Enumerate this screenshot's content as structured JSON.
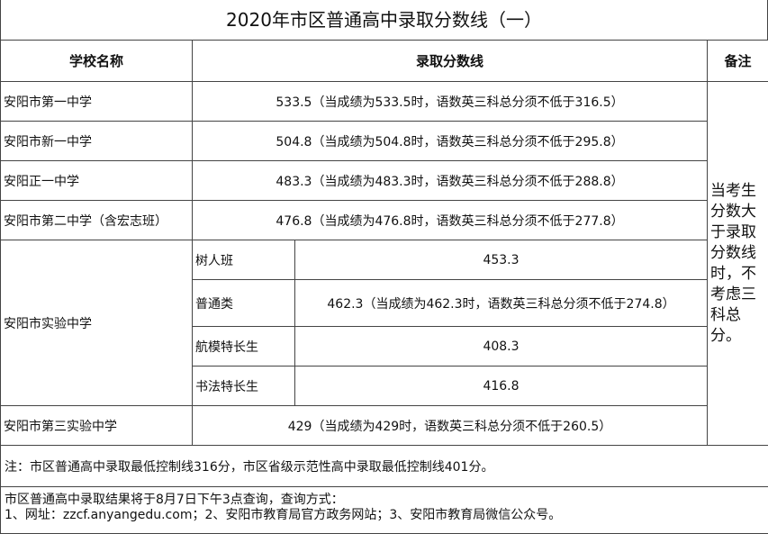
{
  "title": "2020年市区普通高中录取分数线（一）",
  "headers": {
    "school": "学校名称",
    "score": "录取分数线",
    "remark": "备注"
  },
  "rows": [
    {
      "school": "安阳市第一中学",
      "score": "533.5（当成绩为533.5时，语数英三科总分须不低于316.5）"
    },
    {
      "school": "安阳市新一中学",
      "score": "504.8（当成绩为504.8时，语数英三科总分须不低于295.8）"
    },
    {
      "school": "安阳正一中学",
      "score": "483.3（当成绩为483.3时，语数英三科总分须不低于288.8）"
    },
    {
      "school": "安阳市第二中学（含宏志班）",
      "score": "476.8（当成绩为476.8时，语数英三科总分须不低于277.8）"
    }
  ],
  "experimental": {
    "school": "安阳市实验中学",
    "subs": [
      {
        "name": "树人班",
        "score": "453.3"
      },
      {
        "name": "普通类",
        "score": "462.3（当成绩为462.3时，语数英三科总分须不低于274.8）"
      },
      {
        "name": "航模特长生",
        "score": "408.3"
      },
      {
        "name": "书法特长生",
        "score": "416.8"
      }
    ]
  },
  "third": {
    "school": "安阳市第三实验中学",
    "score": "429（当成绩为429时，语数英三科总分须不低于260.5）"
  },
  "remark": "当考生分数大于录取分数线时，不考虑三科总分。",
  "note": "注：市区普通高中录取最低控制线316分，市区省级示范性高中录取最低控制线401分。",
  "footer": {
    "line1": "市区普通高中录取结果将于8月7日下午3点查询，查询方式：",
    "line2": "1、网址：zzcf.anyangedu.com；2、安阳市教育局官方政务网站；3、安阳市教育局微信公众号。"
  }
}
